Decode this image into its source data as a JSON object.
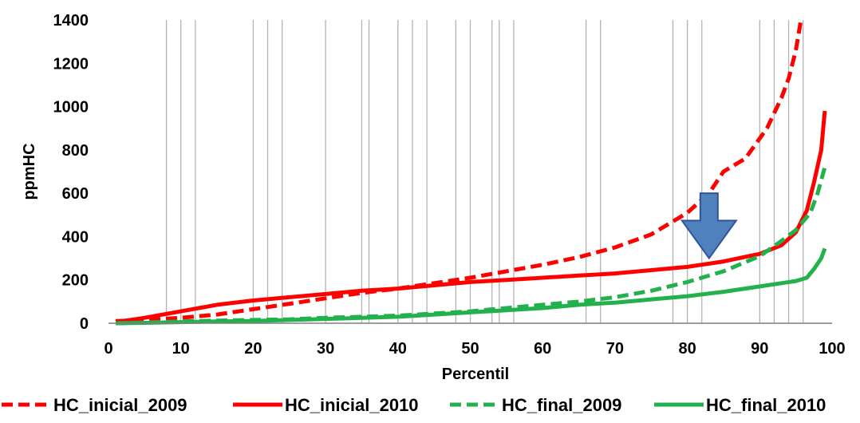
{
  "chart_data": {
    "type": "line",
    "title": "",
    "xlabel": "Percentil",
    "ylabel": "ppmHC",
    "xlim": [
      0,
      100
    ],
    "ylim": [
      0,
      1400
    ],
    "x_ticks": [
      0,
      10,
      20,
      30,
      40,
      50,
      60,
      70,
      80,
      90,
      100
    ],
    "y_ticks": [
      0,
      200,
      400,
      600,
      800,
      1000,
      1200,
      1400
    ],
    "vertical_gridlines_at": [
      8,
      10,
      12,
      20,
      22,
      24,
      30,
      35,
      36,
      40,
      42,
      44,
      48,
      50,
      53,
      54,
      56,
      66,
      68,
      78,
      80,
      82,
      90,
      92,
      94,
      96
    ],
    "legend_position": "bottom",
    "annotation": {
      "type": "down-arrow",
      "x": 83,
      "y_from": 600,
      "y_to": 300,
      "color": "#4f81bd"
    },
    "series": [
      {
        "name": "HC_inicial_2009",
        "color": "#ff0000",
        "style": "dashed",
        "points": [
          [
            1,
            10
          ],
          [
            5,
            15
          ],
          [
            10,
            25
          ],
          [
            15,
            40
          ],
          [
            20,
            65
          ],
          [
            25,
            90
          ],
          [
            30,
            115
          ],
          [
            35,
            140
          ],
          [
            40,
            160
          ],
          [
            45,
            185
          ],
          [
            50,
            210
          ],
          [
            55,
            240
          ],
          [
            60,
            270
          ],
          [
            65,
            305
          ],
          [
            70,
            350
          ],
          [
            75,
            410
          ],
          [
            80,
            510
          ],
          [
            83,
            600
          ],
          [
            85,
            700
          ],
          [
            88,
            760
          ],
          [
            91,
            900
          ],
          [
            93,
            1040
          ],
          [
            94,
            1130
          ],
          [
            95,
            1260
          ],
          [
            95.7,
            1400
          ]
        ]
      },
      {
        "name": "HC_inicial_2010",
        "color": "#ff0000",
        "style": "solid",
        "points": [
          [
            1,
            5
          ],
          [
            5,
            25
          ],
          [
            10,
            55
          ],
          [
            15,
            85
          ],
          [
            20,
            105
          ],
          [
            25,
            120
          ],
          [
            30,
            135
          ],
          [
            35,
            150
          ],
          [
            40,
            160
          ],
          [
            45,
            175
          ],
          [
            50,
            190
          ],
          [
            55,
            200
          ],
          [
            60,
            210
          ],
          [
            65,
            220
          ],
          [
            70,
            230
          ],
          [
            75,
            245
          ],
          [
            80,
            260
          ],
          [
            85,
            285
          ],
          [
            90,
            320
          ],
          [
            93,
            360
          ],
          [
            95,
            420
          ],
          [
            96.5,
            520
          ],
          [
            97.5,
            650
          ],
          [
            98.5,
            800
          ],
          [
            99,
            980
          ]
        ]
      },
      {
        "name": "HC_final_2009",
        "color": "#22b14c",
        "style": "dashed",
        "points": [
          [
            1,
            0
          ],
          [
            5,
            3
          ],
          [
            10,
            8
          ],
          [
            15,
            12
          ],
          [
            20,
            15
          ],
          [
            25,
            18
          ],
          [
            30,
            25
          ],
          [
            35,
            30
          ],
          [
            40,
            35
          ],
          [
            45,
            45
          ],
          [
            50,
            55
          ],
          [
            55,
            70
          ],
          [
            60,
            85
          ],
          [
            65,
            100
          ],
          [
            70,
            120
          ],
          [
            75,
            150
          ],
          [
            80,
            190
          ],
          [
            85,
            240
          ],
          [
            90,
            310
          ],
          [
            93,
            380
          ],
          [
            95,
            430
          ],
          [
            97,
            510
          ],
          [
            98,
            600
          ],
          [
            99,
            720
          ]
        ]
      },
      {
        "name": "HC_final_2010",
        "color": "#22b14c",
        "style": "solid",
        "points": [
          [
            1,
            0
          ],
          [
            5,
            2
          ],
          [
            10,
            5
          ],
          [
            15,
            8
          ],
          [
            20,
            10
          ],
          [
            25,
            15
          ],
          [
            30,
            20
          ],
          [
            35,
            25
          ],
          [
            40,
            30
          ],
          [
            45,
            40
          ],
          [
            50,
            50
          ],
          [
            55,
            60
          ],
          [
            60,
            70
          ],
          [
            65,
            85
          ],
          [
            70,
            95
          ],
          [
            75,
            110
          ],
          [
            80,
            125
          ],
          [
            85,
            145
          ],
          [
            90,
            170
          ],
          [
            93,
            185
          ],
          [
            95,
            195
          ],
          [
            96.5,
            210
          ],
          [
            97.5,
            250
          ],
          [
            98.5,
            300
          ],
          [
            99,
            345
          ]
        ]
      }
    ]
  }
}
